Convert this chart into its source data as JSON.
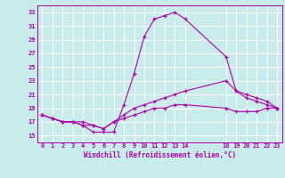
{
  "xlabel": "Windchill (Refroidissement éolien,°C)",
  "bg_color": "#c8ecec",
  "grid_color": "#ffffff",
  "line_color": "#aa00aa",
  "xmin": -0.5,
  "xmax": 23.5,
  "ymin": 14,
  "ymax": 34,
  "xticks": [
    0,
    1,
    2,
    3,
    4,
    5,
    6,
    7,
    8,
    9,
    10,
    11,
    12,
    13,
    14,
    18,
    19,
    20,
    21,
    22,
    23
  ],
  "yticks": [
    15,
    17,
    19,
    21,
    23,
    25,
    27,
    29,
    31,
    33
  ],
  "series1_x": [
    0,
    1,
    2,
    3,
    4,
    5,
    6,
    7,
    8,
    9,
    10,
    11,
    12,
    13,
    14,
    18,
    19,
    20,
    21,
    22,
    23
  ],
  "series1_y": [
    18.0,
    17.5,
    17.0,
    17.0,
    16.5,
    15.5,
    15.5,
    15.5,
    19.5,
    24.0,
    29.5,
    32.0,
    32.5,
    33.0,
    32.0,
    26.5,
    21.5,
    20.5,
    20.0,
    19.5,
    19.0
  ],
  "series2_x": [
    0,
    1,
    2,
    3,
    4,
    5,
    6,
    7,
    8,
    9,
    10,
    11,
    12,
    13,
    14,
    18,
    19,
    20,
    21,
    22,
    23
  ],
  "series2_y": [
    18.0,
    17.5,
    17.0,
    17.0,
    17.0,
    16.5,
    16.0,
    17.0,
    18.0,
    19.0,
    19.5,
    20.0,
    20.5,
    21.0,
    21.5,
    23.0,
    21.5,
    21.0,
    20.5,
    20.0,
    19.0
  ],
  "series3_x": [
    0,
    1,
    2,
    3,
    4,
    5,
    6,
    7,
    8,
    9,
    10,
    11,
    12,
    13,
    14,
    18,
    19,
    20,
    21,
    22,
    23
  ],
  "series3_y": [
    18.0,
    17.5,
    17.0,
    17.0,
    16.5,
    16.5,
    16.0,
    17.0,
    17.5,
    18.0,
    18.5,
    19.0,
    19.0,
    19.5,
    19.5,
    19.0,
    18.5,
    18.5,
    18.5,
    19.0,
    19.0
  ]
}
